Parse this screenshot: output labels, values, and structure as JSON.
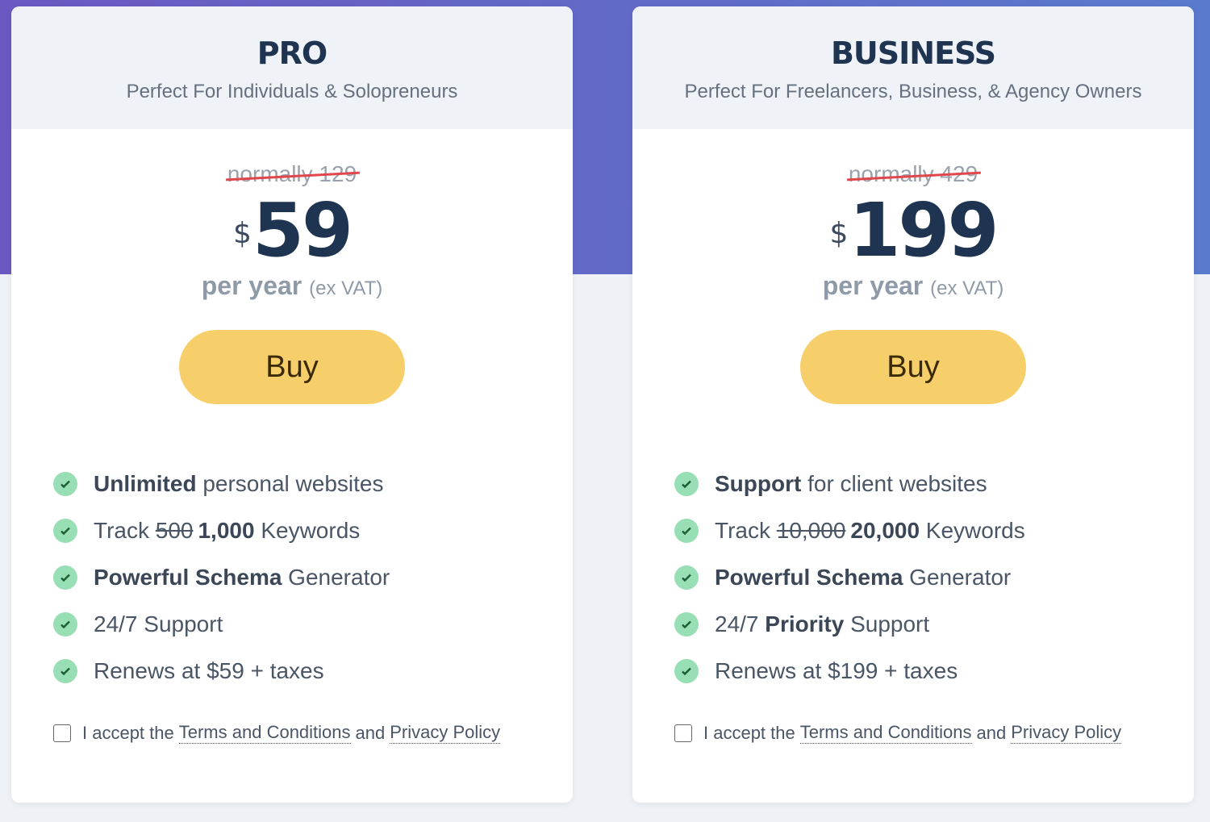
{
  "colors": {
    "accent_button": "#f7cf6a",
    "check": "#98dfb5",
    "strike": "#e0474c",
    "title": "#1f3450"
  },
  "plans": [
    {
      "title": "PRO",
      "subtitle": "Perfect For Individuals & Solopreneurs",
      "normally": "normally 129",
      "currency": "$",
      "price": "59",
      "per": "per year",
      "vat": "(ex VAT)",
      "buy": "Buy",
      "features": [
        {
          "bold": "Unlimited",
          "text": " personal websites"
        },
        {
          "pre": "Track ",
          "strike": "500",
          "bold": "1,000",
          "text": " Keywords"
        },
        {
          "bold": "Powerful Schema",
          "text": " Generator"
        },
        {
          "pre": "24/7 Support"
        },
        {
          "pre": "Renews at $59 + taxes"
        }
      ],
      "terms": {
        "pre": "I accept the",
        "link1": "Terms and Conditions",
        "mid": "and",
        "link2": "Privacy Policy"
      }
    },
    {
      "title": "BUSINESS",
      "subtitle": "Perfect For Freelancers, Business, & Agency Owners",
      "normally": "normally 429",
      "currency": "$",
      "price": "199",
      "per": "per year",
      "vat": "(ex VAT)",
      "buy": "Buy",
      "features": [
        {
          "bold": "Support",
          "text": " for client websites"
        },
        {
          "pre": "Track ",
          "strike": "10,000",
          "bold": "20,000",
          "text": " Keywords"
        },
        {
          "bold": "Powerful Schema",
          "text": " Generator"
        },
        {
          "pre": "24/7 ",
          "bold": "Priority",
          "text": " Support"
        },
        {
          "pre": "Renews at $199 + taxes"
        }
      ],
      "terms": {
        "pre": "I accept the",
        "link1": "Terms and Conditions",
        "mid": "and",
        "link2": "Privacy Policy"
      }
    }
  ]
}
